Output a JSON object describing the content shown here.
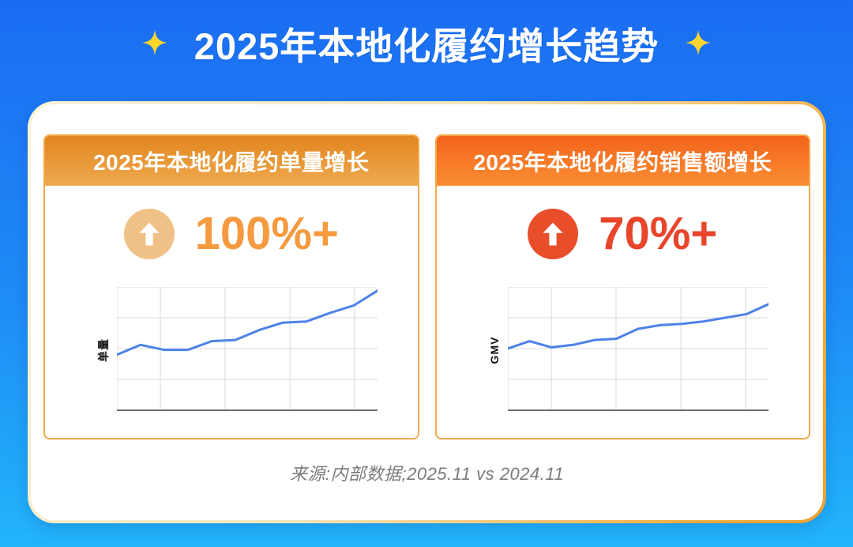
{
  "page": {
    "title": "2025年本地化履约增长趋势"
  },
  "title_icons": {
    "left": "sparkle",
    "right": "sparkle"
  },
  "panels": [
    {
      "header": "2025年本地化履约单量增长",
      "metric_icon": "arrow-up-circle",
      "metric_value": "100%+",
      "ylabel": "单量",
      "accent_color": "#f59a3e",
      "circle_color": "#f0c186",
      "header_gradient_top": "#e1861f",
      "header_gradient_bottom": "#efa94f"
    },
    {
      "header": "2025年本地化履约销售额增长",
      "metric_icon": "arrow-up-circle",
      "metric_value": "70%+",
      "ylabel": "GMV",
      "accent_color": "#e8452b",
      "circle_color": "#e94e2a",
      "header_gradient_top": "#f2641c",
      "header_gradient_bottom": "#fb8e33"
    }
  ],
  "footer": {
    "source": "来源:内部数据;2025.11 vs 2024.11"
  },
  "colors": {
    "background_top": "#1b6cf2",
    "background_bottom": "#22b5fa",
    "title_text": "#ffffff",
    "sparkle": "#ffd62e",
    "card_border_light": "#fdf4d8",
    "card_border_dark": "#f0a133",
    "panel_border": "#f3a949",
    "line": "#4d82e8",
    "grid": "#d9d9d9",
    "axis": "#6f6f6f",
    "source_text": "#7b7b7b"
  },
  "chart_data": [
    {
      "type": "line",
      "title": "2025年本地化履约单量增长",
      "xlabel": "",
      "ylabel": "单量",
      "x": [
        1,
        2,
        3,
        4,
        5,
        6,
        7,
        8,
        9,
        10,
        11,
        12
      ],
      "values": [
        45,
        53,
        49,
        49,
        56,
        57,
        65,
        71,
        72,
        79,
        85,
        97
      ],
      "ylim": [
        0,
        100
      ],
      "axis_tick_labels": "none",
      "grid": true,
      "legend": "none",
      "series_color": "#4d82e8",
      "note": "no numeric ticks shown; values are % of plot height estimated from pixels"
    },
    {
      "type": "line",
      "title": "2025年本地化履约销售额增长",
      "xlabel": "",
      "ylabel": "GMV",
      "x": [
        1,
        2,
        3,
        4,
        5,
        6,
        7,
        8,
        9,
        10,
        11,
        12,
        13
      ],
      "values": [
        50,
        56,
        51,
        53,
        57,
        58,
        66,
        69,
        70,
        72,
        75,
        78,
        86
      ],
      "ylim": [
        0,
        100
      ],
      "axis_tick_labels": "none",
      "grid": true,
      "legend": "none",
      "series_color": "#4d82e8",
      "note": "no numeric ticks shown; values are % of plot height estimated from pixels"
    }
  ]
}
